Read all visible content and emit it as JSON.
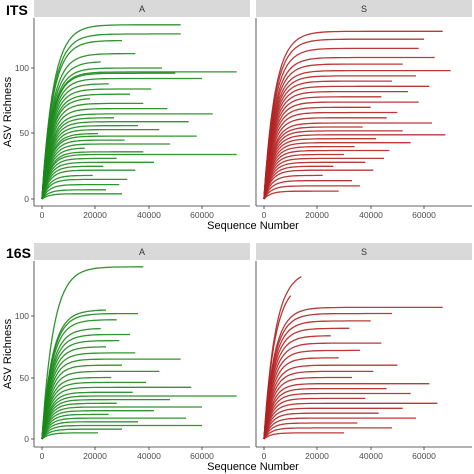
{
  "colors": {
    "A": "#1a8a1a",
    "S": "#b22222",
    "strip": "#d9d9d9",
    "axis": "#333333"
  },
  "chart_data": [
    {
      "type": "line",
      "panel_label": "ITS",
      "facets": [
        "A",
        "S"
      ],
      "xlabel": "Sequence Number",
      "ylabel": "ASV Richness",
      "xlim": [
        0,
        75000
      ],
      "ylim": [
        0,
        140
      ],
      "x_ticks": [
        0,
        20000,
        40000,
        60000
      ],
      "x_tick_labels": [
        "0",
        "20000",
        "40000",
        "60000"
      ],
      "y_ticks": [
        0,
        50,
        100
      ],
      "y_tick_labels": [
        "0",
        "50",
        "100"
      ],
      "grid": false,
      "curves": {
        "A": [
          {
            "asymptote": 133,
            "depth": 52000
          },
          {
            "asymptote": 126,
            "depth": 52000
          },
          {
            "asymptote": 121,
            "depth": 30000
          },
          {
            "asymptote": 111,
            "depth": 35000
          },
          {
            "asymptote": 105,
            "depth": 22000
          },
          {
            "asymptote": 100,
            "depth": 45000
          },
          {
            "asymptote": 97,
            "depth": 73000
          },
          {
            "asymptote": 96,
            "depth": 50000
          },
          {
            "asymptote": 92,
            "depth": 60000
          },
          {
            "asymptote": 88,
            "depth": 25000
          },
          {
            "asymptote": 84,
            "depth": 41000
          },
          {
            "asymptote": 80,
            "depth": 33000
          },
          {
            "asymptote": 77,
            "depth": 18000
          },
          {
            "asymptote": 73,
            "depth": 38000
          },
          {
            "asymptote": 69,
            "depth": 47000
          },
          {
            "asymptote": 65,
            "depth": 64000
          },
          {
            "asymptote": 62,
            "depth": 27000
          },
          {
            "asymptote": 59,
            "depth": 55000
          },
          {
            "asymptote": 56,
            "depth": 36000
          },
          {
            "asymptote": 53,
            "depth": 44000
          },
          {
            "asymptote": 50,
            "depth": 21000
          },
          {
            "asymptote": 48,
            "depth": 58000
          },
          {
            "asymptote": 45,
            "depth": 31000
          },
          {
            "asymptote": 42,
            "depth": 48000
          },
          {
            "asymptote": 39,
            "depth": 16000
          },
          {
            "asymptote": 36,
            "depth": 38000
          },
          {
            "asymptote": 34,
            "depth": 73000
          },
          {
            "asymptote": 31,
            "depth": 28000
          },
          {
            "asymptote": 28,
            "depth": 42000
          },
          {
            "asymptote": 25,
            "depth": 23000
          },
          {
            "asymptote": 22,
            "depth": 35000
          },
          {
            "asymptote": 18,
            "depth": 19000
          },
          {
            "asymptote": 15,
            "depth": 32000
          },
          {
            "asymptote": 11,
            "depth": 29000
          },
          {
            "asymptote": 7,
            "depth": 24000
          },
          {
            "asymptote": 4,
            "depth": 30000
          }
        ],
        "S": [
          {
            "asymptote": 128,
            "depth": 67000
          },
          {
            "asymptote": 122,
            "depth": 60000
          },
          {
            "asymptote": 115,
            "depth": 58000
          },
          {
            "asymptote": 108,
            "depth": 64000
          },
          {
            "asymptote": 103,
            "depth": 52000
          },
          {
            "asymptote": 98,
            "depth": 70000
          },
          {
            "asymptote": 94,
            "depth": 57000
          },
          {
            "asymptote": 90,
            "depth": 48000
          },
          {
            "asymptote": 86,
            "depth": 62000
          },
          {
            "asymptote": 82,
            "depth": 54000
          },
          {
            "asymptote": 78,
            "depth": 44000
          },
          {
            "asymptote": 74,
            "depth": 58000
          },
          {
            "asymptote": 70,
            "depth": 40000
          },
          {
            "asymptote": 66,
            "depth": 50000
          },
          {
            "asymptote": 62,
            "depth": 46000
          },
          {
            "asymptote": 58,
            "depth": 63000
          },
          {
            "asymptote": 55,
            "depth": 37000
          },
          {
            "asymptote": 52,
            "depth": 52000
          },
          {
            "asymptote": 49,
            "depth": 68000
          },
          {
            "asymptote": 46,
            "depth": 42000
          },
          {
            "asymptote": 43,
            "depth": 55000
          },
          {
            "asymptote": 40,
            "depth": 34000
          },
          {
            "asymptote": 37,
            "depth": 47000
          },
          {
            "asymptote": 34,
            "depth": 30000
          },
          {
            "asymptote": 31,
            "depth": 45000
          },
          {
            "asymptote": 28,
            "depth": 38000
          },
          {
            "asymptote": 25,
            "depth": 26000
          },
          {
            "asymptote": 22,
            "depth": 41000
          },
          {
            "asymptote": 18,
            "depth": 22000
          },
          {
            "asymptote": 14,
            "depth": 33000
          },
          {
            "asymptote": 10,
            "depth": 36000
          },
          {
            "asymptote": 6,
            "depth": 28000
          }
        ]
      }
    },
    {
      "type": "line",
      "panel_label": "16S",
      "facets": [
        "A",
        "S"
      ],
      "xlabel": "Sequence Number",
      "ylabel": "ASV Richness",
      "xlim": [
        0,
        75000
      ],
      "ylim": [
        0,
        145
      ],
      "x_ticks": [
        0,
        20000,
        40000,
        60000
      ],
      "x_tick_labels": [
        "0",
        "20000",
        "40000",
        "60000"
      ],
      "y_ticks": [
        0,
        50,
        100
      ],
      "y_tick_labels": [
        "0",
        "50",
        "100"
      ],
      "grid": false,
      "curves": {
        "A": [
          {
            "asymptote": 140,
            "depth": 38000
          },
          {
            "asymptote": 105,
            "depth": 24000
          },
          {
            "asymptote": 102,
            "depth": 36000
          },
          {
            "asymptote": 97,
            "depth": 28000
          },
          {
            "asymptote": 90,
            "depth": 22000
          },
          {
            "asymptote": 85,
            "depth": 33000
          },
          {
            "asymptote": 80,
            "depth": 29000
          },
          {
            "asymptote": 75,
            "depth": 24000
          },
          {
            "asymptote": 70,
            "depth": 35000
          },
          {
            "asymptote": 65,
            "depth": 52000
          },
          {
            "asymptote": 60,
            "depth": 30000
          },
          {
            "asymptote": 55,
            "depth": 44000
          },
          {
            "asymptote": 50,
            "depth": 26000
          },
          {
            "asymptote": 46,
            "depth": 39000
          },
          {
            "asymptote": 42,
            "depth": 56000
          },
          {
            "asymptote": 38,
            "depth": 34000
          },
          {
            "asymptote": 35,
            "depth": 73000
          },
          {
            "asymptote": 32,
            "depth": 48000
          },
          {
            "asymptote": 29,
            "depth": 28000
          },
          {
            "asymptote": 26,
            "depth": 60000
          },
          {
            "asymptote": 23,
            "depth": 42000
          },
          {
            "asymptote": 20,
            "depth": 25000
          },
          {
            "asymptote": 17,
            "depth": 54000
          },
          {
            "asymptote": 14,
            "depth": 36000
          },
          {
            "asymptote": 11,
            "depth": 60000
          },
          {
            "asymptote": 8,
            "depth": 30000
          },
          {
            "asymptote": 5,
            "depth": 21000
          }
        ],
        "S": [
          {
            "asymptote": 137,
            "depth": 14000
          },
          {
            "asymptote": 128,
            "depth": 10000
          },
          {
            "asymptote": 107,
            "depth": 67000
          },
          {
            "asymptote": 102,
            "depth": 48000
          },
          {
            "asymptote": 96,
            "depth": 40000
          },
          {
            "asymptote": 90,
            "depth": 32000
          },
          {
            "asymptote": 84,
            "depth": 25000
          },
          {
            "asymptote": 78,
            "depth": 44000
          },
          {
            "asymptote": 72,
            "depth": 36000
          },
          {
            "asymptote": 66,
            "depth": 28000
          },
          {
            "asymptote": 60,
            "depth": 50000
          },
          {
            "asymptote": 55,
            "depth": 41000
          },
          {
            "asymptote": 50,
            "depth": 33000
          },
          {
            "asymptote": 45,
            "depth": 62000
          },
          {
            "asymptote": 41,
            "depth": 46000
          },
          {
            "asymptote": 37,
            "depth": 55000
          },
          {
            "asymptote": 33,
            "depth": 38000
          },
          {
            "asymptote": 29,
            "depth": 65000
          },
          {
            "asymptote": 25,
            "depth": 52000
          },
          {
            "asymptote": 21,
            "depth": 43000
          },
          {
            "asymptote": 17,
            "depth": 57000
          },
          {
            "asymptote": 13,
            "depth": 35000
          },
          {
            "asymptote": 9,
            "depth": 48000
          },
          {
            "asymptote": 5,
            "depth": 30000
          }
        ]
      }
    }
  ]
}
